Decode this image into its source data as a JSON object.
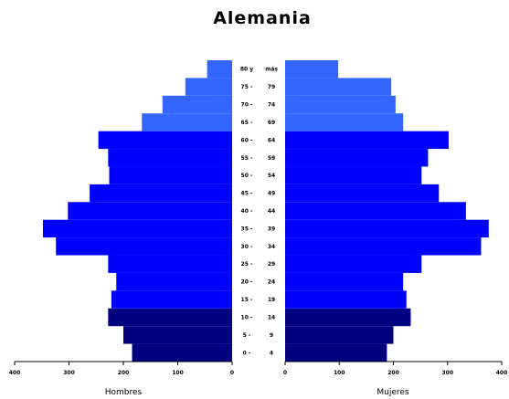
{
  "chart_data": {
    "type": "bar",
    "title": "Alemania",
    "left_label": "Hombres",
    "right_label": "Mujeres",
    "xlim": [
      0,
      400
    ],
    "left_ticks": [
      "400",
      "300",
      "200",
      "100",
      "0"
    ],
    "right_ticks": [
      "0",
      "100",
      "200",
      "300",
      "400"
    ],
    "categories": [
      {
        "left": "0 -",
        "right": "4"
      },
      {
        "left": "5 -",
        "right": "9"
      },
      {
        "left": "10 -",
        "right": "14"
      },
      {
        "left": "15 -",
        "right": "19"
      },
      {
        "left": "20 -",
        "right": "24"
      },
      {
        "left": "25 -",
        "right": "29"
      },
      {
        "left": "30 -",
        "right": "34"
      },
      {
        "left": "35 -",
        "right": "39"
      },
      {
        "left": "40 -",
        "right": "44"
      },
      {
        "left": "45 -",
        "right": "49"
      },
      {
        "left": "50 -",
        "right": "54"
      },
      {
        "left": "55 -",
        "right": "59"
      },
      {
        "left": "60 -",
        "right": "64"
      },
      {
        "left": "65 -",
        "right": "69"
      },
      {
        "left": "70 -",
        "right": "74"
      },
      {
        "left": "75 -",
        "right": "79"
      },
      {
        "left": "80 y",
        "right": "más"
      }
    ],
    "series": [
      {
        "values": [
          184,
          200,
          228,
          222,
          213,
          228,
          324,
          348,
          302,
          262,
          226,
          228,
          246,
          166,
          128,
          86,
          46
        ]
      },
      {
        "values": [
          188,
          200,
          232,
          224,
          218,
          252,
          362,
          376,
          334,
          284,
          252,
          264,
          302,
          218,
          204,
          196,
          98
        ]
      }
    ],
    "colors": {
      "young": "#000080",
      "working": "#0000ff",
      "old": "#3366ff"
    }
  }
}
